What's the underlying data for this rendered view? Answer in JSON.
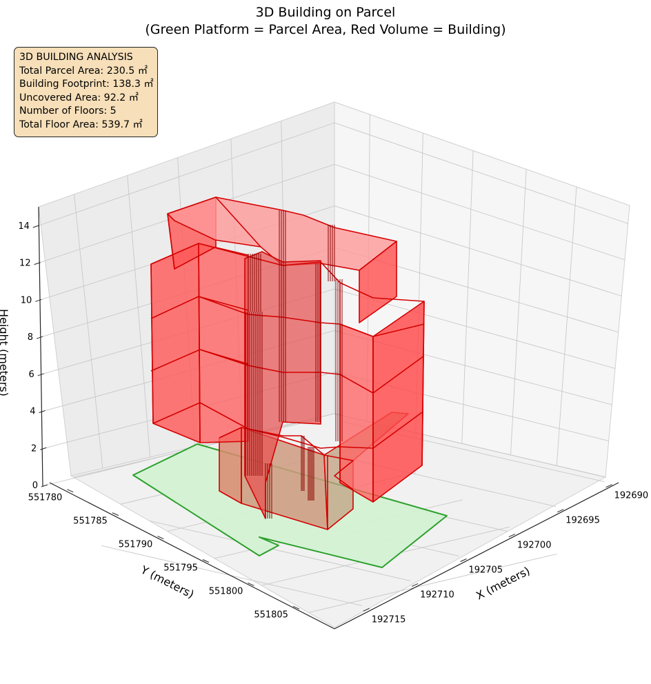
{
  "title_line1": "3D Building on Parcel",
  "title_line2": "(Green Platform = Parcel Area, Red Volume = Building)",
  "info_box": {
    "heading": "3D BUILDING ANALYSIS",
    "lines": [
      "Total Parcel Area: 230.5 ㎡",
      "Building Footprint: 138.3 ㎡",
      "Uncovered Area: 92.2 ㎡",
      "Number of Floors: 5",
      "Total Floor Area: 539.7 ㎡"
    ]
  },
  "chart_data": {
    "type": "3d-polygon",
    "xlabel": "X (meters)",
    "ylabel": "Y (meters)",
    "zlabel": "Height (meters)",
    "x_ticks": [
      "192690",
      "192695",
      "192700",
      "192705",
      "192710",
      "192715"
    ],
    "y_ticks": [
      "551780",
      "551785",
      "551790",
      "551795",
      "551800",
      "551805"
    ],
    "z_ticks": [
      "0",
      "2",
      "4",
      "6",
      "8",
      "10",
      "12",
      "14"
    ],
    "zlim": [
      0,
      15
    ],
    "grid": true,
    "series": [
      {
        "name": "Parcel Area",
        "height": 0,
        "edge_color": "#2ca02c",
        "fill_color": "#d4f1d4"
      },
      {
        "name": "Building",
        "floors": 5,
        "floor_height": 3,
        "top_height": 15,
        "edge_color": "#d40000",
        "fill_color": "#ff4444"
      }
    ],
    "stats": {
      "total_parcel_area_m2": 230.5,
      "building_footprint_m2": 138.3,
      "uncovered_area_m2": 92.2,
      "number_of_floors": 5,
      "total_floor_area_m2": 539.7
    }
  }
}
